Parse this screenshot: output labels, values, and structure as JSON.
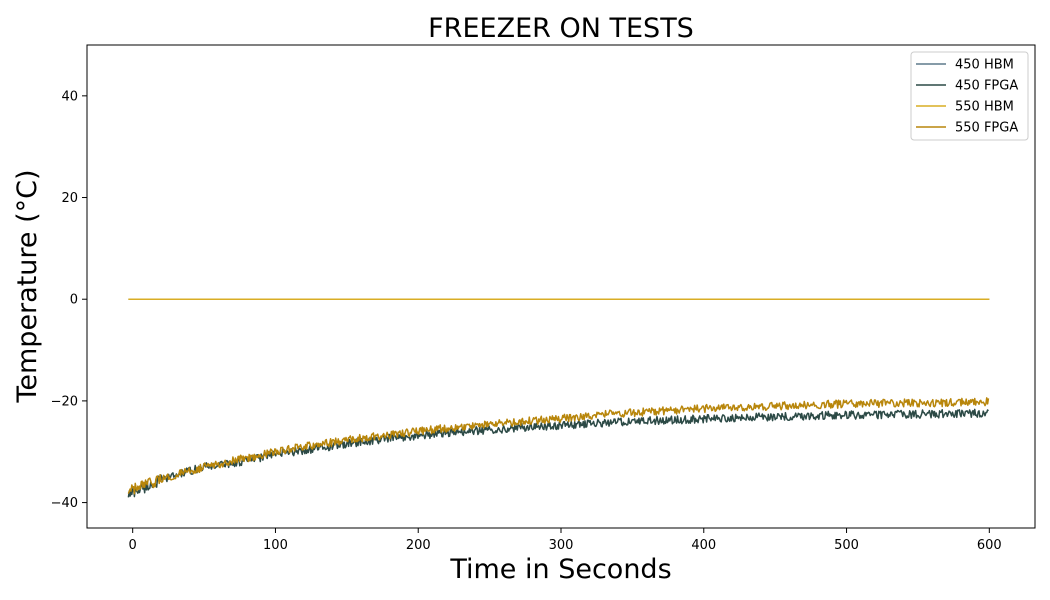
{
  "chart_data": {
    "type": "line",
    "title": "FREEZER ON TESTS",
    "xlabel": "Time in Seconds",
    "ylabel": "Temperature (°C)",
    "xlim": [
      -32,
      632
    ],
    "ylim": [
      -45,
      50
    ],
    "xticks": [
      0,
      100,
      200,
      300,
      400,
      500,
      600
    ],
    "yticks": [
      -40,
      -20,
      0,
      20,
      40
    ],
    "xtick_labels": [
      "0",
      "100",
      "200",
      "300",
      "400",
      "500",
      "600"
    ],
    "ytick_labels": [
      "−40",
      "−20",
      "0",
      "20",
      "40"
    ],
    "grid": false,
    "legend_position": "top-right",
    "series": [
      {
        "name": "450 HBM",
        "color": "#5f7a8c",
        "x": [
          -3,
          0,
          100,
          200,
          300,
          400,
          500,
          600
        ],
        "y": [
          0,
          0,
          0,
          0,
          0,
          0,
          0,
          0
        ]
      },
      {
        "name": "450 FPGA",
        "color": "#2c4a46",
        "x": [
          -3,
          0,
          25,
          50,
          75,
          100,
          125,
          150,
          175,
          200,
          225,
          250,
          275,
          300,
          325,
          350,
          375,
          400,
          425,
          450,
          475,
          500,
          525,
          550,
          575,
          600
        ],
        "y": [
          -38.5,
          -38,
          -35,
          -33,
          -32,
          -30.5,
          -29.5,
          -28.5,
          -27.5,
          -26.8,
          -26.2,
          -25.7,
          -25.2,
          -24.8,
          -24.4,
          -24,
          -23.8,
          -23.5,
          -23.3,
          -23.1,
          -22.9,
          -22.8,
          -22.7,
          -22.6,
          -22.5,
          -22.4
        ]
      },
      {
        "name": "550 HBM",
        "color": "#d9ad24",
        "x": [
          -3,
          0,
          100,
          200,
          300,
          400,
          500,
          600
        ],
        "y": [
          0,
          0,
          0,
          0,
          0,
          0,
          0,
          0
        ]
      },
      {
        "name": "550 FPGA",
        "color": "#b8860b",
        "x": [
          -3,
          0,
          25,
          50,
          75,
          100,
          125,
          150,
          175,
          200,
          225,
          250,
          275,
          300,
          325,
          350,
          375,
          400,
          425,
          450,
          475,
          500,
          525,
          550,
          575,
          600
        ],
        "y": [
          -38,
          -37.5,
          -35,
          -33,
          -31.5,
          -30,
          -28.8,
          -27.7,
          -26.8,
          -26,
          -25.2,
          -24.6,
          -24,
          -23.4,
          -22.8,
          -22.3,
          -21.9,
          -21.5,
          -21.2,
          -21,
          -20.8,
          -20.6,
          -20.5,
          -20.4,
          -20.3,
          -20.2
        ]
      }
    ]
  }
}
